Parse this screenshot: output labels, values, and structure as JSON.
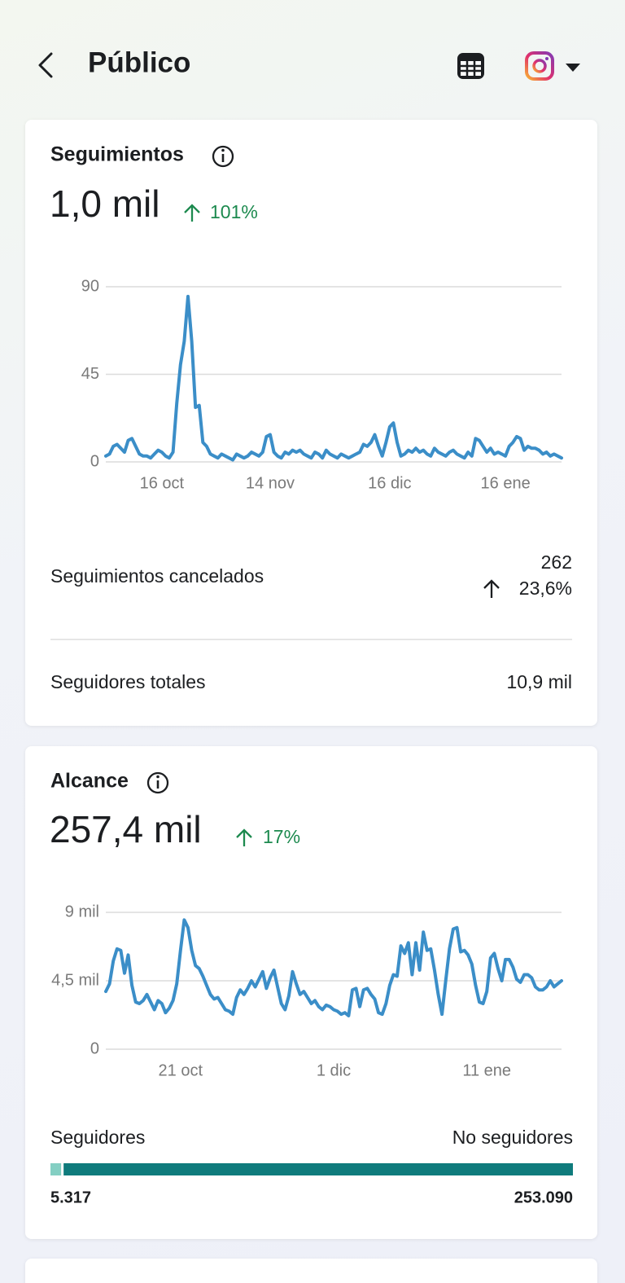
{
  "header": {
    "title": "Público"
  },
  "cards": [
    {
      "title": "Seguimientos",
      "value": "1,0 mil",
      "change": "101%",
      "chart_data": {
        "type": "line",
        "color": "#3b8ec8",
        "categories": [
          null,
          null,
          null,
          null,
          null,
          null,
          null,
          null,
          null,
          null,
          null,
          null,
          null,
          null,
          null,
          "16 oct",
          null,
          null,
          null,
          null,
          null,
          null,
          null,
          null,
          null,
          null,
          null,
          null,
          null,
          null,
          null,
          null,
          null,
          null,
          null,
          null,
          null,
          null,
          null,
          null,
          null,
          null,
          null,
          null,
          "14 nov",
          null,
          null,
          null,
          null,
          null,
          null,
          null,
          null,
          null,
          null,
          null,
          null,
          null,
          null,
          null,
          null,
          null,
          null,
          null,
          null,
          null,
          null,
          null,
          null,
          null,
          null,
          null,
          null,
          null,
          null,
          null,
          "16 dic",
          null,
          null,
          null,
          null,
          null,
          null,
          null,
          null,
          null,
          null,
          null,
          null,
          null,
          null,
          null,
          null,
          null,
          null,
          null,
          null,
          null,
          null,
          null,
          null,
          null,
          null,
          null,
          null,
          null,
          null,
          "16 ene",
          null,
          null,
          null,
          null,
          null,
          null,
          null,
          null,
          null,
          null,
          null,
          null,
          null,
          null,
          null
        ],
        "values": [
          3,
          4,
          8,
          9,
          7,
          5,
          11,
          12,
          8,
          4,
          3,
          3,
          2,
          4,
          6,
          5,
          3,
          2,
          5,
          30,
          50,
          62,
          85,
          62,
          28,
          29,
          10,
          8,
          4,
          3,
          2,
          4,
          3,
          2,
          1,
          4,
          3,
          2,
          3,
          5,
          4,
          3,
          5,
          13,
          14,
          5,
          3,
          2,
          5,
          4,
          6,
          5,
          6,
          4,
          3,
          2,
          5,
          4,
          2,
          6,
          4,
          3,
          2,
          4,
          3,
          2,
          3,
          4,
          5,
          9,
          8,
          10,
          14,
          8,
          3,
          10,
          18,
          20,
          10,
          3,
          4,
          6,
          5,
          7,
          5,
          6,
          4,
          3,
          7,
          5,
          4,
          3,
          5,
          6,
          4,
          3,
          2,
          5,
          3,
          12,
          11,
          8,
          5,
          7,
          4,
          5,
          4,
          3,
          8,
          10,
          13,
          12,
          6,
          8,
          7,
          7,
          6,
          4,
          5,
          3,
          4,
          3,
          2
        ],
        "ylim": [
          0,
          90
        ],
        "yticks": [
          0,
          45,
          90
        ],
        "grid": true
      },
      "rows": [
        {
          "label": "Seguimientos cancelados",
          "value": "262",
          "change": "23,6%"
        },
        {
          "label": "Seguidores totales",
          "value": "10,9 mil"
        }
      ]
    },
    {
      "title": "Alcance",
      "value": "257,4 mil",
      "change": "17%",
      "chart_data": {
        "type": "line",
        "color": "#3b8ec8",
        "categories": [
          null,
          null,
          null,
          null,
          null,
          null,
          null,
          null,
          null,
          null,
          null,
          null,
          null,
          null,
          null,
          null,
          null,
          null,
          null,
          null,
          "21 oct",
          null,
          null,
          null,
          null,
          null,
          null,
          null,
          null,
          null,
          null,
          null,
          null,
          null,
          null,
          null,
          null,
          null,
          null,
          null,
          null,
          null,
          null,
          null,
          null,
          null,
          null,
          null,
          null,
          null,
          null,
          null,
          null,
          null,
          null,
          null,
          null,
          null,
          null,
          null,
          null,
          "1 dic",
          null,
          null,
          null,
          null,
          null,
          null,
          null,
          null,
          null,
          null,
          null,
          null,
          null,
          null,
          null,
          null,
          null,
          null,
          null,
          null,
          null,
          null,
          null,
          null,
          null,
          null,
          null,
          null,
          null,
          null,
          null,
          null,
          null,
          null,
          null,
          null,
          null,
          null,
          null,
          null,
          "11 ene",
          null,
          null,
          null,
          null,
          null,
          null,
          null,
          null,
          null,
          null,
          null,
          null,
          null,
          null,
          null,
          null,
          null,
          null,
          null,
          null
        ],
        "values": [
          3800,
          4300,
          5800,
          6600,
          6500,
          5000,
          6200,
          4200,
          3100,
          3000,
          3200,
          3600,
          3100,
          2600,
          3200,
          3000,
          2400,
          2700,
          3200,
          4300,
          6500,
          8500,
          8000,
          6500,
          5500,
          5300,
          4800,
          4200,
          3600,
          3300,
          3400,
          3000,
          2600,
          2500,
          2300,
          3400,
          3900,
          3600,
          4000,
          4500,
          4100,
          4600,
          5100,
          4000,
          4700,
          5200,
          4100,
          3000,
          2600,
          3500,
          5100,
          4300,
          3600,
          3800,
          3400,
          3000,
          3200,
          2800,
          2600,
          2900,
          2800,
          2600,
          2500,
          2300,
          2400,
          2200,
          3900,
          4000,
          2800,
          3900,
          4000,
          3600,
          3300,
          2400,
          2300,
          3000,
          4200,
          4900,
          4800,
          6800,
          6300,
          7000,
          4900,
          7000,
          5200,
          7700,
          6500,
          6600,
          5200,
          3600,
          2300,
          4500,
          6600,
          7900,
          8000,
          6400,
          6500,
          6200,
          5600,
          4200,
          3100,
          3000,
          3800,
          6000,
          6300,
          5300,
          4500,
          5900,
          5900,
          5400,
          4600,
          4400,
          4900,
          4900,
          4700,
          4100,
          3900,
          3900,
          4100,
          4500,
          4100,
          4300,
          4500
        ],
        "ylim": [
          0,
          9000
        ],
        "yticks": [
          0,
          {
            "value": 4500,
            "label": "4,5 mil"
          },
          {
            "value": 9000,
            "label": "9 mil"
          }
        ],
        "grid": true
      },
      "breakdown": {
        "type": "bar",
        "categories": [
          "Seguidores",
          "No seguidores"
        ],
        "values": [
          5317,
          253090
        ],
        "value_labels": [
          "5.317",
          "253.090"
        ],
        "colors": [
          "#84cfc3",
          "#0f7b7c"
        ]
      }
    }
  ]
}
